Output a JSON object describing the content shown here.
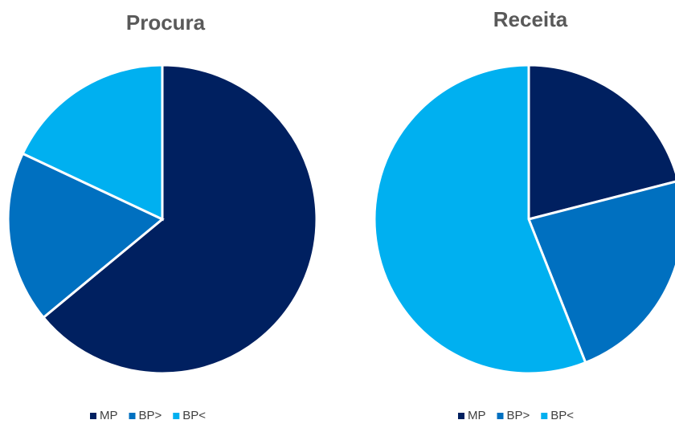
{
  "chart_data": [
    {
      "type": "pie",
      "title": "Procura",
      "categories": [
        "MP",
        "BP>",
        "BP<"
      ],
      "values": [
        64,
        18,
        18
      ],
      "colors": [
        "#002060",
        "#0070c0",
        "#00b0f0"
      ]
    },
    {
      "type": "pie",
      "title": "Receita",
      "categories": [
        "MP",
        "BP>",
        "BP<"
      ],
      "values": [
        21,
        23,
        56
      ],
      "colors": [
        "#002060",
        "#0070c0",
        "#00b0f0"
      ]
    }
  ]
}
